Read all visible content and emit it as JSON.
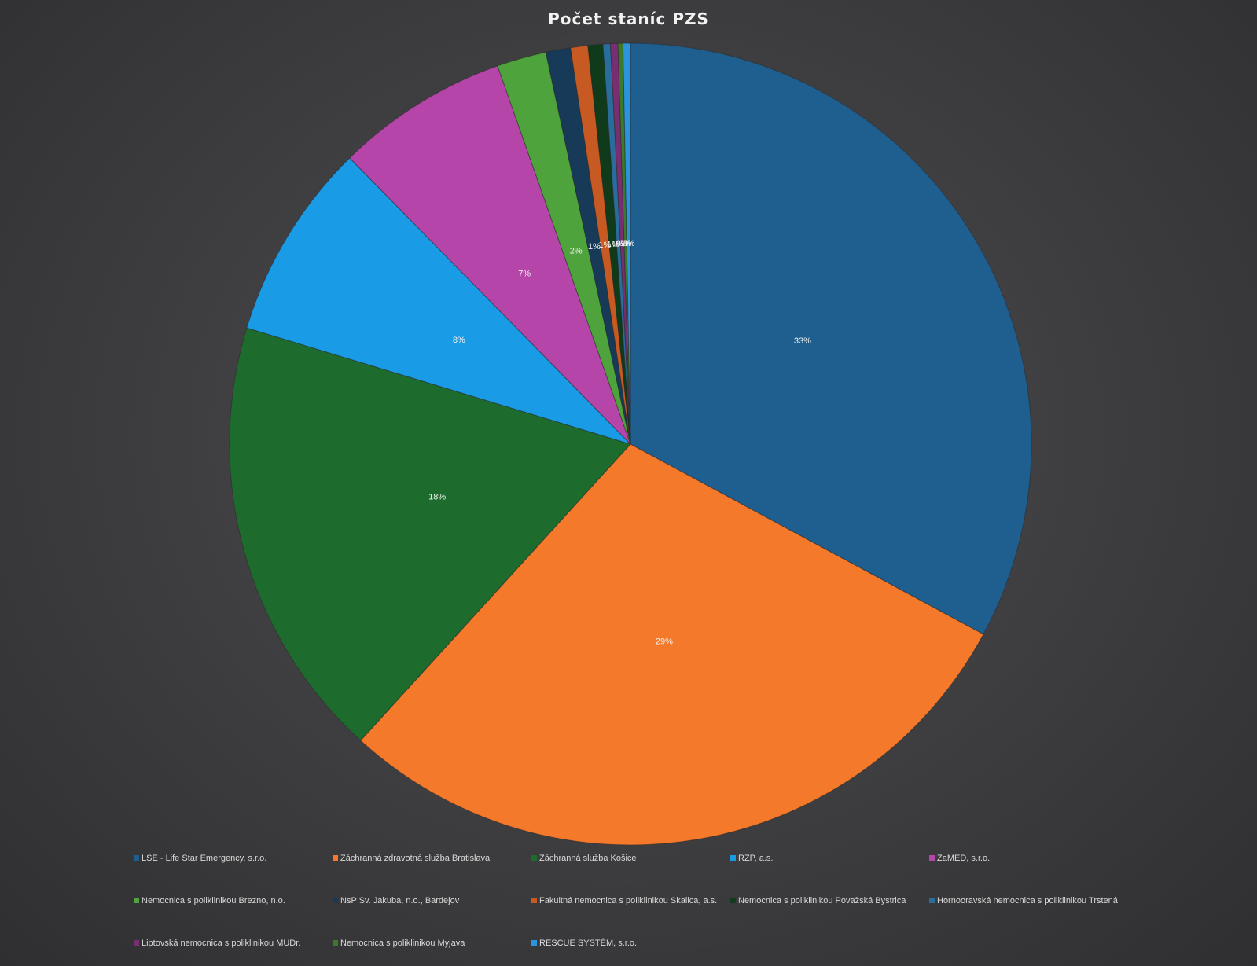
{
  "chart_data": {
    "type": "pie",
    "title": "Počet staníc PZS",
    "legend_position": "bottom",
    "series": [
      {
        "name": "LSE - Life Star Emergency, s.r.o.",
        "value": 33,
        "label": "33%",
        "color": "#1f5f8f"
      },
      {
        "name": "Záchranná zdravotná služba Bratislava",
        "value": 29,
        "label": "29%",
        "color": "#f5792a"
      },
      {
        "name": "Záchranná služba Košice",
        "value": 18,
        "label": "18%",
        "color": "#1e6b2e"
      },
      {
        "name": "RZP, a.s.",
        "value": 8,
        "label": "8%",
        "color": "#1a9be6"
      },
      {
        "name": "ZaMED, s.r.o.",
        "value": 7,
        "label": "7%",
        "color": "#b545a8"
      },
      {
        "name": "Nemocnica s poliklinikou Brezno, n.o.",
        "value": 2,
        "label": "2%",
        "color": "#4fa33c"
      },
      {
        "name": "NsP Sv. Jakuba, n.o., Bardejov",
        "value": 1,
        "label": "1%",
        "color": "#173a58"
      },
      {
        "name": "Fakultná nemocnica s poliklinikou Skalica, a.s.",
        "value": 0.7,
        "label": "1%",
        "color": "#c75a22"
      },
      {
        "name": "Nemocnica s poliklinikou Považská Bystrica",
        "value": 0.6,
        "label": "1%",
        "color": "#0f3b1a"
      },
      {
        "name": "Hornooravská nemocnica s poliklinikou Trstená",
        "value": 0.3,
        "label": "0%",
        "color": "#2a6d9d"
      },
      {
        "name": "Liptovská nemocnica s poliklinikou MUDr.",
        "value": 0.3,
        "label": "0%",
        "color": "#7a2e72"
      },
      {
        "name": "Nemocnica s poliklinikou Myjava",
        "value": 0.2,
        "label": "0%",
        "color": "#3a7a2c"
      },
      {
        "name": "RESCUE SYSTÉM, s.r.o.",
        "value": 0.3,
        "label": "0%",
        "color": "#2b94dc"
      }
    ]
  }
}
